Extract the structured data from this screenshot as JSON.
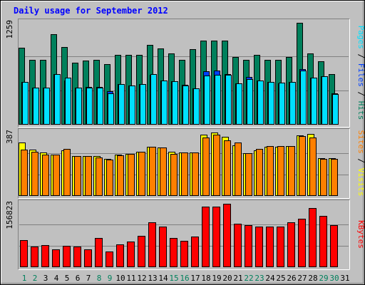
{
  "title": "Daily usage for September 2012",
  "colors": {
    "background": "#C0C0C0",
    "title_text": "#0000FF",
    "hits": "#00805C",
    "files": "#0040FF",
    "pages": "#00E0FF",
    "visits": "#FFFF00",
    "sites": "#FF8000",
    "kbytes": "#FF0000",
    "weekend_label": "#00805C",
    "weekday_label": "#000000"
  },
  "chart_data": [
    {
      "type": "bar",
      "name": "hits-files-pages",
      "right_label": [
        {
          "text": "Pages",
          "color_key": "pages"
        },
        {
          "text": " / ",
          "color_key": "weekday_label"
        },
        {
          "text": "Files",
          "color_key": "files"
        },
        {
          "text": " / ",
          "color_key": "weekday_label"
        },
        {
          "text": "Hits",
          "color_key": "hits"
        }
      ],
      "ymax_label": "1259",
      "ylim": [
        0,
        1259
      ],
      "series": [
        {
          "name": "Hits",
          "color_key": "hits",
          "values": [
            945,
            800,
            800,
            1115,
            960,
            765,
            790,
            795,
            745,
            860,
            860,
            860,
            985,
            940,
            880,
            795,
            935,
            1035,
            1035,
            1035,
            835,
            800,
            860,
            800,
            800,
            835,
            1255,
            875,
            780,
            625
          ]
        },
        {
          "name": "Files",
          "color_key": "files",
          "values": [
            520,
            450,
            455,
            620,
            545,
            450,
            460,
            460,
            405,
            500,
            475,
            495,
            610,
            540,
            530,
            485,
            445,
            660,
            665,
            620,
            505,
            585,
            545,
            520,
            505,
            520,
            680,
            575,
            590,
            380
          ]
        },
        {
          "name": "Pages",
          "color_key": "pages",
          "values": [
            520,
            455,
            455,
            620,
            580,
            450,
            455,
            455,
            380,
            500,
            475,
            495,
            620,
            540,
            530,
            480,
            445,
            605,
            610,
            610,
            505,
            560,
            545,
            520,
            510,
            520,
            665,
            575,
            590,
            370
          ]
        }
      ]
    },
    {
      "type": "bar",
      "name": "visits-sites",
      "right_label": [
        {
          "text": "Sites",
          "color_key": "sites"
        },
        {
          "text": " / ",
          "color_key": "weekday_label"
        },
        {
          "text": "Visits",
          "color_key": "visits"
        }
      ],
      "ymax_label": "387",
      "ylim": [
        0,
        387
      ],
      "series": [
        {
          "name": "Visits",
          "color_key": "visits",
          "values": [
            325,
            280,
            265,
            250,
            275,
            240,
            240,
            240,
            225,
            250,
            255,
            270,
            300,
            295,
            270,
            265,
            265,
            375,
            385,
            360,
            310,
            260,
            275,
            300,
            300,
            305,
            370,
            380,
            230,
            230
          ]
        },
        {
          "name": "Sites",
          "color_key": "sites",
          "values": [
            280,
            270,
            250,
            250,
            285,
            240,
            240,
            235,
            220,
            245,
            255,
            270,
            300,
            295,
            255,
            265,
            265,
            355,
            375,
            340,
            325,
            260,
            285,
            305,
            305,
            305,
            365,
            355,
            225,
            225
          ]
        }
      ]
    },
    {
      "type": "bar",
      "name": "kbytes",
      "right_label": [
        {
          "text": "KBytes",
          "color_key": "kbytes"
        }
      ],
      "ymax_label": "156823",
      "ylim": [
        0,
        156823
      ],
      "series": [
        {
          "name": "KBytes",
          "color_key": "kbytes",
          "values": [
            66000,
            50500,
            53500,
            42500,
            51500,
            50000,
            43500,
            70500,
            37500,
            54500,
            62000,
            77500,
            110500,
            99000,
            71000,
            64500,
            75500,
            150500,
            150000,
            156823,
            107000,
            103500,
            99000,
            99000,
            100000,
            110500,
            119000,
            147000,
            126000,
            104000
          ]
        }
      ]
    }
  ],
  "days": [
    {
      "label": "1",
      "weekend": true
    },
    {
      "label": "2",
      "weekend": true
    },
    {
      "label": "3",
      "weekend": false
    },
    {
      "label": "4",
      "weekend": false
    },
    {
      "label": "5",
      "weekend": false
    },
    {
      "label": "6",
      "weekend": false
    },
    {
      "label": "7",
      "weekend": false
    },
    {
      "label": "8",
      "weekend": true
    },
    {
      "label": "9",
      "weekend": true
    },
    {
      "label": "10",
      "weekend": false
    },
    {
      "label": "11",
      "weekend": false
    },
    {
      "label": "12",
      "weekend": false
    },
    {
      "label": "13",
      "weekend": false
    },
    {
      "label": "14",
      "weekend": false
    },
    {
      "label": "15",
      "weekend": true
    },
    {
      "label": "16",
      "weekend": true
    },
    {
      "label": "17",
      "weekend": false
    },
    {
      "label": "18",
      "weekend": false
    },
    {
      "label": "19",
      "weekend": false
    },
    {
      "label": "20",
      "weekend": false
    },
    {
      "label": "21",
      "weekend": false
    },
    {
      "label": "22",
      "weekend": true
    },
    {
      "label": "23",
      "weekend": true
    },
    {
      "label": "24",
      "weekend": false
    },
    {
      "label": "25",
      "weekend": false
    },
    {
      "label": "26",
      "weekend": false
    },
    {
      "label": "27",
      "weekend": false
    },
    {
      "label": "28",
      "weekend": false
    },
    {
      "label": "29",
      "weekend": true
    },
    {
      "label": "30",
      "weekend": true
    },
    {
      "label": "31",
      "weekend": false
    }
  ]
}
